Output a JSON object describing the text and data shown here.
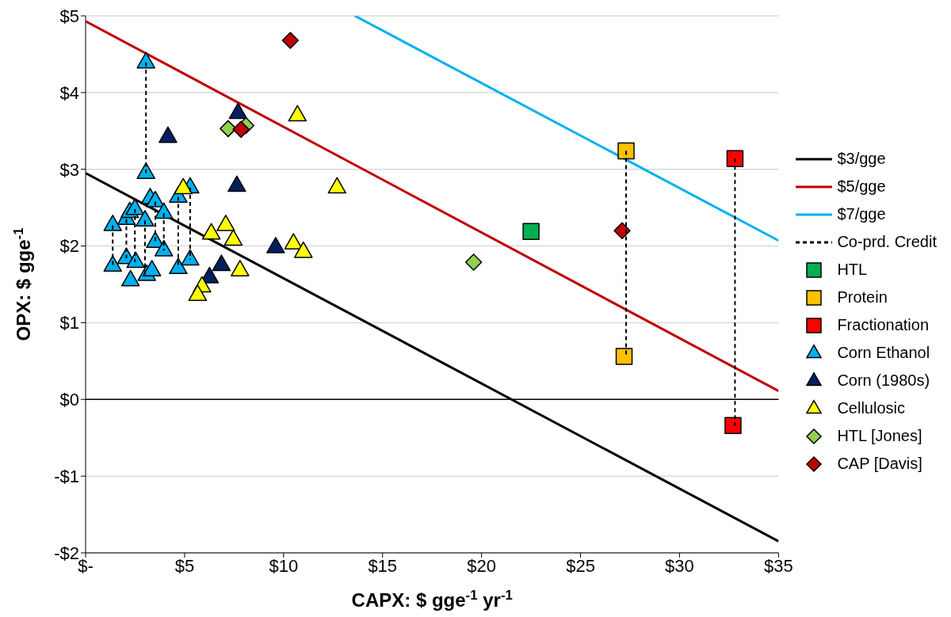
{
  "chart_data": {
    "type": "scatter",
    "xlabel": "CAPX: $ gge$^{-1}$ yr$^{-1}$",
    "ylabel": "OPX: $ gge$^{-1}$",
    "xlim": [
      0,
      35
    ],
    "xticks": [
      {
        "value": 0,
        "label": "$-"
      },
      {
        "value": 5,
        "label": "$5"
      },
      {
        "value": 10,
        "label": "$10"
      },
      {
        "value": 15,
        "label": "$15"
      },
      {
        "value": 20,
        "label": "$20"
      },
      {
        "value": 25,
        "label": "$25"
      },
      {
        "value": 30,
        "label": "$30"
      },
      {
        "value": 35,
        "label": "$35"
      }
    ],
    "ylim": [
      -2,
      5
    ],
    "yticks": [
      {
        "value": -2,
        "label": "-$2"
      },
      {
        "value": -1,
        "label": "-$1"
      },
      {
        "value": 0,
        "label": "$0"
      },
      {
        "value": 1,
        "label": "$1"
      },
      {
        "value": 2,
        "label": "$2"
      },
      {
        "value": 3,
        "label": "$3"
      },
      {
        "value": 4,
        "label": "$4"
      },
      {
        "value": 5,
        "label": "$5"
      }
    ],
    "grid": "y",
    "legend": "right",
    "ref_lines": [
      {
        "axis": "y",
        "value": 0,
        "color": "#000000"
      }
    ],
    "series": [
      {
        "name": "$3/gge",
        "type": "line",
        "color": "#000000",
        "line_style": "solid",
        "x": [
          0,
          35
        ],
        "values": [
          2.95,
          -1.85
        ]
      },
      {
        "name": "$5/gge",
        "type": "line",
        "color": "#c00000",
        "line_style": "solid",
        "x": [
          0,
          35
        ],
        "values": [
          4.93,
          0.11
        ]
      },
      {
        "name": "$7/gge",
        "type": "line",
        "color": "#00b0f0",
        "line_style": "solid",
        "x": [
          13.6,
          35
        ],
        "values": [
          5,
          2.07
        ]
      },
      {
        "name": "Co-prd. Credit",
        "type": "line",
        "color": "#000000",
        "line_style": "dashed",
        "x": [
          3.05,
          3.05
        ],
        "values": [
          4.39,
          2.95
        ]
      },
      {
        "type": "line",
        "color": "#000000",
        "line_style": "dashed",
        "x": [
          1.37,
          1.37
        ],
        "values": [
          2.27,
          1.74
        ]
      },
      {
        "type": "line",
        "color": "#000000",
        "line_style": "dashed",
        "x": [
          2.06,
          2.06
        ],
        "values": [
          2.35,
          1.84
        ]
      },
      {
        "type": "line",
        "color": "#000000",
        "line_style": "dashed",
        "x": [
          2.49,
          2.49
        ],
        "values": [
          2.48,
          1.79
        ]
      },
      {
        "type": "line",
        "color": "#000000",
        "line_style": "dashed",
        "x": [
          3.0,
          3.0
        ],
        "values": [
          2.33,
          1.62
        ]
      },
      {
        "type": "line",
        "color": "#000000",
        "line_style": "dashed",
        "x": [
          3.52,
          3.52
        ],
        "values": [
          2.58,
          2.05
        ]
      },
      {
        "type": "line",
        "color": "#000000",
        "line_style": "dashed",
        "x": [
          3.95,
          3.95
        ],
        "values": [
          2.43,
          1.94
        ]
      },
      {
        "type": "line",
        "color": "#000000",
        "line_style": "dashed",
        "x": [
          4.68,
          4.68
        ],
        "values": [
          2.64,
          1.71
        ]
      },
      {
        "type": "line",
        "color": "#000000",
        "line_style": "dashed",
        "x": [
          5.28,
          5.28
        ],
        "values": [
          2.76,
          1.82
        ]
      },
      {
        "type": "line",
        "color": "#000000",
        "line_style": "dashed",
        "x": [
          27.3,
          27.3
        ],
        "values": [
          3.24,
          0.56
        ]
      },
      {
        "type": "line",
        "color": "#000000",
        "line_style": "dashed",
        "x": [
          32.8,
          32.8
        ],
        "values": [
          3.14,
          -0.34
        ]
      },
      {
        "name": "HTL",
        "marker": "square",
        "color": "#00b050",
        "x": [
          22.5
        ],
        "values": [
          2.19
        ]
      },
      {
        "name": "Protein",
        "marker": "square",
        "color": "#ffc000",
        "x": [
          27.3,
          27.2
        ],
        "values": [
          3.24,
          0.56
        ]
      },
      {
        "name": "Fractionation",
        "marker": "square",
        "color": "#ff0000",
        "x": [
          32.8,
          32.7
        ],
        "values": [
          3.14,
          -0.34
        ]
      },
      {
        "name": "Corn Ethanol",
        "marker": "triangle",
        "color": "#00b0f0",
        "x": [
          3.05,
          1.37,
          2.06,
          2.23,
          2.49,
          3.0,
          3.26,
          3.52,
          3.95,
          4.68,
          5.28,
          3.05,
          1.37,
          2.06,
          2.27,
          2.53,
          3.09,
          3.35,
          3.52,
          3.95,
          4.68,
          5.28
        ],
        "values": [
          4.39,
          2.27,
          2.35,
          2.44,
          2.48,
          2.33,
          2.62,
          2.58,
          2.43,
          2.64,
          2.76,
          2.95,
          1.74,
          1.84,
          1.55,
          1.79,
          1.62,
          1.68,
          2.05,
          1.94,
          1.71,
          1.82
        ]
      },
      {
        "name": "Corn (1980s)",
        "marker": "triangle",
        "color": "#002060",
        "x": [
          7.7,
          4.16,
          7.64,
          9.6,
          6.86,
          6.26
        ],
        "values": [
          3.73,
          3.42,
          2.78,
          1.98,
          1.75,
          1.59
        ]
      },
      {
        "name": "Cellulosic",
        "marker": "triangle",
        "color": "#ffff00",
        "x": [
          10.7,
          12.7,
          4.93,
          10.5,
          11.0,
          7.08,
          7.46,
          6.35,
          7.8,
          5.88,
          5.66
        ],
        "values": [
          3.7,
          2.76,
          2.75,
          2.03,
          1.92,
          2.27,
          2.08,
          2.16,
          1.68,
          1.47,
          1.36
        ]
      },
      {
        "name": "HTL [Jones]",
        "marker": "diamond",
        "color": "#92d050",
        "x": [
          7.2,
          8.1,
          19.6
        ],
        "values": [
          3.53,
          3.57,
          1.79
        ]
      },
      {
        "name": "CAP [Davis]",
        "marker": "diamond",
        "color": "#c00000",
        "x": [
          10.34,
          7.85,
          27.1
        ],
        "values": [
          4.68,
          3.52,
          2.2
        ]
      }
    ]
  }
}
